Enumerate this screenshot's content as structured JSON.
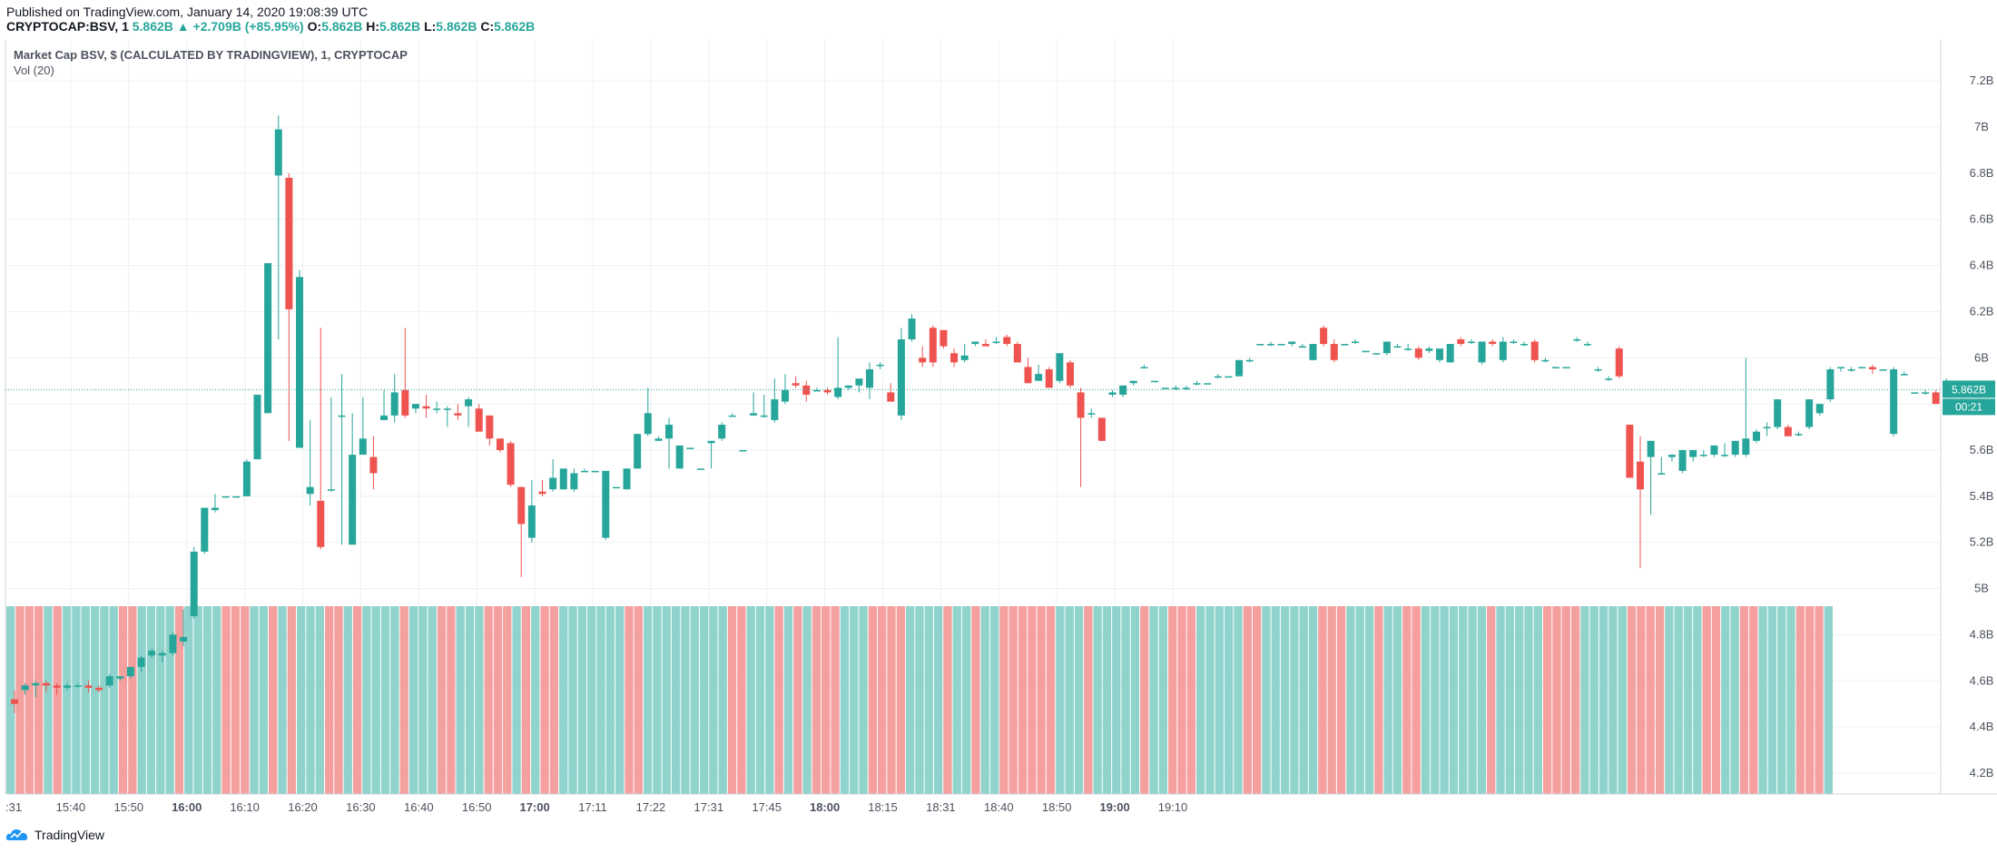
{
  "header": {
    "published": "Published on TradingView.com, January 14, 2020 19:08:39 UTC",
    "symbol": "CRYPTOCAP:BSV, 1",
    "change": "5.862B ▲ +2.709B (+85.95%)",
    "open_label": "O:",
    "open_value": "5.862B",
    "high_label": "H:",
    "high_value": "5.862B",
    "low_label": "L:",
    "low_value": "5.862B",
    "close_label": "C:",
    "close_value": "5.862B"
  },
  "legend": {
    "title": "Market Cap BSV, $ (CALCULATED BY TRADINGVIEW), 1, CRYPTOCAP",
    "volume": "Vol (20)"
  },
  "footer": {
    "brand": "TradingView"
  },
  "colors": {
    "up": "#26a69a",
    "down": "#ef5350",
    "vol_up": "#8fd3cc",
    "vol_down": "#f4a09f",
    "grid": "#ecf0f4",
    "price_line": "#26a69a"
  },
  "chart_data": {
    "type": "candlestick",
    "price_axis": {
      "ticks": [
        4.2,
        4.4,
        4.6,
        4.8,
        5.0,
        5.2,
        5.4,
        5.6,
        5.8,
        6.0,
        6.2,
        6.4,
        6.6,
        6.8,
        7.0,
        7.2
      ],
      "tick_labels": [
        "4.2B",
        "4.4B",
        "4.6B",
        "4.8B",
        "5B",
        "5.2B",
        "5.4B",
        "5.6B",
        "5.8B",
        "6B",
        "6.2B",
        "6.4B",
        "6.6B",
        "6.8B",
        "7B",
        "7.2B"
      ],
      "unit": "B",
      "range": [
        4.05,
        7.35
      ]
    },
    "time_axis": {
      "labels": [
        ":31",
        "15:40",
        "15:50",
        "16:00",
        "16:10",
        "16:20",
        "16:30",
        "16:40",
        "16:50",
        "17:00",
        "17:11",
        "17:22",
        "17:31",
        "17:45",
        "18:00",
        "18:15",
        "18:31",
        "18:40",
        "18:50",
        "19:00",
        "19:10"
      ],
      "bold": [
        "16:00",
        "17:00",
        "18:00",
        "19:00"
      ]
    },
    "last_price": {
      "value": 5.862,
      "label": "5.862B",
      "countdown": "00:21"
    },
    "volume_direction": "uddduduuuuuudduuuuduuuuddduududuuudduduuuuduuudduuudddududduuuuuuudduuuuuuuuudduuudududdduuudddduuuuduuduudddddduuuduuuuuduuddduuuuudduuuuuuddduuuduudduuuuuuuduuuuudddduuuuudddduuuudduudduuuudddu",
    "candles": [
      [
        4.52,
        4.56,
        4.5,
        4.46
      ],
      [
        4.56,
        4.59,
        4.58,
        4.54
      ],
      [
        4.58,
        4.6,
        4.59,
        4.53
      ],
      [
        4.59,
        4.6,
        4.58,
        4.55
      ],
      [
        4.58,
        4.59,
        4.57,
        4.54
      ],
      [
        4.57,
        4.59,
        4.58,
        4.56
      ],
      [
        4.58,
        4.59,
        4.58,
        4.57
      ],
      [
        4.58,
        4.6,
        4.57,
        4.55
      ],
      [
        4.57,
        4.58,
        4.56,
        4.55
      ],
      [
        4.58,
        4.63,
        4.62,
        4.57
      ],
      [
        4.61,
        4.62,
        4.62,
        4.6
      ],
      [
        4.62,
        4.66,
        4.66,
        4.61
      ],
      [
        4.66,
        4.71,
        4.7,
        4.64
      ],
      [
        4.71,
        4.74,
        4.73,
        4.7
      ],
      [
        4.71,
        4.73,
        4.72,
        4.68
      ],
      [
        4.72,
        4.81,
        4.8,
        4.71
      ],
      [
        4.77,
        4.91,
        4.79,
        4.75
      ],
      [
        4.88,
        5.18,
        5.16,
        4.87
      ],
      [
        5.16,
        5.34,
        5.35,
        5.15
      ],
      [
        5.34,
        5.41,
        5.35,
        5.33
      ],
      [
        5.4,
        5.4,
        5.4,
        5.4
      ],
      [
        5.4,
        5.4,
        5.4,
        5.4
      ],
      [
        5.4,
        5.56,
        5.55,
        5.4
      ],
      [
        5.56,
        5.83,
        5.84,
        5.56
      ],
      [
        5.76,
        6.41,
        6.41,
        5.76
      ],
      [
        6.79,
        7.05,
        6.99,
        6.08
      ],
      [
        6.78,
        6.8,
        6.21,
        5.64
      ],
      [
        5.61,
        6.38,
        6.35,
        5.61
      ],
      [
        5.41,
        5.73,
        5.44,
        5.36
      ],
      [
        5.38,
        6.13,
        5.18,
        5.17
      ],
      [
        5.43,
        5.83,
        5.43,
        5.42
      ],
      [
        5.75,
        5.93,
        5.75,
        5.19
      ],
      [
        5.19,
        5.76,
        5.58,
        5.19
      ],
      [
        5.58,
        5.83,
        5.65,
        5.58
      ],
      [
        5.57,
        5.66,
        5.5,
        5.43
      ],
      [
        5.73,
        5.86,
        5.75,
        5.73
      ],
      [
        5.75,
        5.93,
        5.85,
        5.72
      ],
      [
        5.86,
        6.13,
        5.75,
        5.74
      ],
      [
        5.78,
        5.8,
        5.8,
        5.76
      ],
      [
        5.79,
        5.84,
        5.78,
        5.74
      ],
      [
        5.78,
        5.81,
        5.78,
        5.76
      ],
      [
        5.78,
        5.79,
        5.78,
        5.7
      ],
      [
        5.76,
        5.8,
        5.75,
        5.73
      ],
      [
        5.79,
        5.83,
        5.82,
        5.7
      ],
      [
        5.78,
        5.8,
        5.68,
        5.71
      ],
      [
        5.75,
        5.75,
        5.65,
        5.62
      ],
      [
        5.65,
        5.64,
        5.6,
        5.59
      ],
      [
        5.63,
        5.64,
        5.45,
        5.44
      ],
      [
        5.44,
        5.44,
        5.28,
        5.05
      ],
      [
        5.22,
        5.47,
        5.36,
        5.2
      ],
      [
        5.42,
        5.47,
        5.41,
        5.4
      ],
      [
        5.43,
        5.56,
        5.48,
        5.42
      ],
      [
        5.43,
        5.51,
        5.52,
        5.43
      ],
      [
        5.43,
        5.52,
        5.5,
        5.42
      ],
      [
        5.51,
        5.52,
        5.51,
        5.51
      ],
      [
        5.51,
        5.51,
        5.51,
        5.51
      ],
      [
        5.22,
        5.51,
        5.51,
        5.21
      ],
      [
        5.44,
        5.44,
        5.44,
        5.44
      ],
      [
        5.43,
        5.52,
        5.52,
        5.43
      ],
      [
        5.52,
        5.52,
        5.67,
        5.52
      ],
      [
        5.67,
        5.87,
        5.76,
        5.66
      ],
      [
        5.64,
        5.66,
        5.65,
        5.64
      ],
      [
        5.65,
        5.74,
        5.71,
        5.52
      ],
      [
        5.52,
        5.6,
        5.62,
        5.52
      ],
      [
        5.61,
        5.61,
        5.61,
        5.61
      ],
      [
        5.52,
        5.52,
        5.52,
        5.52
      ],
      [
        5.63,
        5.64,
        5.64,
        5.52
      ],
      [
        5.65,
        5.72,
        5.71,
        5.64
      ],
      [
        5.75,
        5.76,
        5.75,
        5.75
      ],
      [
        5.6,
        5.6,
        5.6,
        5.6
      ],
      [
        5.75,
        5.85,
        5.76,
        5.75
      ],
      [
        5.75,
        5.84,
        5.75,
        5.74
      ],
      [
        5.73,
        5.91,
        5.82,
        5.72
      ],
      [
        5.81,
        5.93,
        5.86,
        5.8
      ],
      [
        5.89,
        5.92,
        5.88,
        5.87
      ],
      [
        5.88,
        5.9,
        5.84,
        5.81
      ],
      [
        5.86,
        5.87,
        5.86,
        5.86
      ],
      [
        5.86,
        5.87,
        5.85,
        5.84
      ],
      [
        5.83,
        6.09,
        5.87,
        5.82
      ],
      [
        5.87,
        5.87,
        5.88,
        5.86
      ],
      [
        5.88,
        5.89,
        5.91,
        5.85
      ],
      [
        5.87,
        5.98,
        5.95,
        5.82
      ],
      [
        5.97,
        5.98,
        5.97,
        5.95
      ],
      [
        5.85,
        5.89,
        5.81,
        5.81
      ],
      [
        5.75,
        6.13,
        6.08,
        5.73
      ],
      [
        6.08,
        6.19,
        6.17,
        6.07
      ],
      [
        6.0,
        6.05,
        5.98,
        5.96
      ],
      [
        6.13,
        6.14,
        5.98,
        5.96
      ],
      [
        6.12,
        6.12,
        6.05,
        6.04
      ],
      [
        6.02,
        6.04,
        5.98,
        5.96
      ],
      [
        5.99,
        6.06,
        6.01,
        5.98
      ],
      [
        6.06,
        6.07,
        6.07,
        6.05
      ],
      [
        6.06,
        6.08,
        6.05,
        6.05
      ],
      [
        6.07,
        6.09,
        6.07,
        6.06
      ],
      [
        6.09,
        6.1,
        6.06,
        6.05
      ],
      [
        6.06,
        6.07,
        5.98,
        5.98
      ],
      [
        5.96,
        6.0,
        5.89,
        5.89
      ],
      [
        5.9,
        5.97,
        5.93,
        5.9
      ],
      [
        5.95,
        5.96,
        5.87,
        5.87
      ],
      [
        5.9,
        6.02,
        6.02,
        5.89
      ],
      [
        5.98,
        5.99,
        5.88,
        5.87
      ],
      [
        5.85,
        5.87,
        5.74,
        5.44
      ],
      [
        5.76,
        5.78,
        5.76,
        5.74
      ],
      [
        5.74,
        5.74,
        5.64,
        5.64
      ],
      [
        5.84,
        5.86,
        5.85,
        5.83
      ],
      [
        5.84,
        5.88,
        5.88,
        5.83
      ],
      [
        5.89,
        5.9,
        5.9,
        5.88
      ],
      [
        5.96,
        5.97,
        5.96,
        5.96
      ],
      [
        5.9,
        5.9,
        5.9,
        5.9
      ],
      [
        5.87,
        5.87,
        5.87,
        5.87
      ],
      [
        5.87,
        5.88,
        5.87,
        5.86
      ],
      [
        5.87,
        5.88,
        5.87,
        5.86
      ],
      [
        5.89,
        5.9,
        5.89,
        5.88
      ],
      [
        5.89,
        5.89,
        5.89,
        5.89
      ],
      [
        5.92,
        5.93,
        5.92,
        5.91
      ],
      [
        5.92,
        5.92,
        5.92,
        5.92
      ],
      [
        5.92,
        5.99,
        5.99,
        5.92
      ],
      [
        5.99,
        6.0,
        5.99,
        5.98
      ],
      [
        6.06,
        6.06,
        6.06,
        6.06
      ],
      [
        6.06,
        6.07,
        6.06,
        6.05
      ],
      [
        6.06,
        6.06,
        6.06,
        6.06
      ],
      [
        6.06,
        6.07,
        6.07,
        6.05
      ],
      [
        6.05,
        6.06,
        6.05,
        6.05
      ],
      [
        5.99,
        6.05,
        6.06,
        5.99
      ],
      [
        6.13,
        6.14,
        6.06,
        6.05
      ],
      [
        6.06,
        6.08,
        5.99,
        5.98
      ],
      [
        6.06,
        6.06,
        6.06,
        6.06
      ],
      [
        6.07,
        6.08,
        6.07,
        6.06
      ],
      [
        6.03,
        6.03,
        6.03,
        6.03
      ],
      [
        6.02,
        6.02,
        6.02,
        6.02
      ],
      [
        6.02,
        6.07,
        6.07,
        6.01
      ],
      [
        6.05,
        6.06,
        6.05,
        6.05
      ],
      [
        6.04,
        6.06,
        6.04,
        6.03
      ],
      [
        6.04,
        6.05,
        6.0,
        5.99
      ],
      [
        6.03,
        6.05,
        6.04,
        6.02
      ],
      [
        5.99,
        6.04,
        6.04,
        5.98
      ],
      [
        5.98,
        6.0,
        6.06,
        5.98
      ],
      [
        6.08,
        6.09,
        6.06,
        6.05
      ],
      [
        6.07,
        6.08,
        6.07,
        6.06
      ],
      [
        5.98,
        6.07,
        6.07,
        5.97
      ],
      [
        6.07,
        6.08,
        6.06,
        6.05
      ],
      [
        5.99,
        6.09,
        6.07,
        5.98
      ],
      [
        6.07,
        6.08,
        6.07,
        6.06
      ],
      [
        6.06,
        6.07,
        6.06,
        6.05
      ],
      [
        6.07,
        6.08,
        5.99,
        5.98
      ],
      [
        5.99,
        6.0,
        5.99,
        5.98
      ],
      [
        5.96,
        5.96,
        5.96,
        5.96
      ],
      [
        5.96,
        5.96,
        5.96,
        5.96
      ],
      [
        6.08,
        6.09,
        6.08,
        6.07
      ],
      [
        6.06,
        6.07,
        6.06,
        6.05
      ],
      [
        5.95,
        5.96,
        5.95,
        5.94
      ],
      [
        5.91,
        5.92,
        5.91,
        5.9
      ],
      [
        6.04,
        6.05,
        5.92,
        5.91
      ],
      [
        5.71,
        5.69,
        5.48,
        5.48
      ],
      [
        5.55,
        5.66,
        5.43,
        5.09
      ],
      [
        5.57,
        5.64,
        5.64,
        5.32
      ],
      [
        5.5,
        5.57,
        5.5,
        5.5
      ],
      [
        5.57,
        5.58,
        5.58,
        5.55
      ],
      [
        5.51,
        5.58,
        5.6,
        5.5
      ],
      [
        5.57,
        5.6,
        5.6,
        5.55
      ],
      [
        5.58,
        5.6,
        5.58,
        5.57
      ],
      [
        5.58,
        5.62,
        5.62,
        5.57
      ],
      [
        5.58,
        5.63,
        5.58,
        5.57
      ],
      [
        5.58,
        5.6,
        5.64,
        5.57
      ],
      [
        5.58,
        6.0,
        5.65,
        5.57
      ],
      [
        5.64,
        5.69,
        5.68,
        5.63
      ],
      [
        5.7,
        5.72,
        5.7,
        5.66
      ],
      [
        5.7,
        5.78,
        5.82,
        5.69
      ],
      [
        5.7,
        5.71,
        5.66,
        5.66
      ],
      [
        5.67,
        5.68,
        5.67,
        5.66
      ],
      [
        5.7,
        5.81,
        5.82,
        5.69
      ],
      [
        5.76,
        5.78,
        5.8,
        5.75
      ],
      [
        5.82,
        5.96,
        5.95,
        5.81
      ],
      [
        5.96,
        5.96,
        5.96,
        5.94
      ],
      [
        5.95,
        5.96,
        5.95,
        5.94
      ],
      [
        5.96,
        5.96,
        5.96,
        5.96
      ],
      [
        5.96,
        5.97,
        5.95,
        5.93
      ],
      [
        5.95,
        5.95,
        5.95,
        5.95
      ],
      [
        5.67,
        5.96,
        5.95,
        5.66
      ],
      [
        5.93,
        5.94,
        5.93,
        5.93
      ],
      [
        5.85,
        5.85,
        5.85,
        5.85
      ],
      [
        5.85,
        5.86,
        5.85,
        5.84
      ],
      [
        5.85,
        5.86,
        5.8,
        5.8
      ],
      [
        5.9,
        5.91,
        5.9,
        5.89
      ],
      [
        5.86,
        5.86,
        5.86,
        5.86
      ]
    ]
  }
}
